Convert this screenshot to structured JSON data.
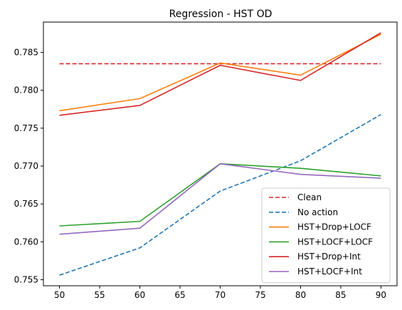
{
  "chart_data": {
    "type": "line",
    "title": "Regression - HST OD",
    "xlabel": "",
    "ylabel": "",
    "x": [
      50,
      60,
      70,
      80,
      90
    ],
    "xlim": [
      48,
      92
    ],
    "ylim": [
      0.7542,
      0.789
    ],
    "xticks": [
      50,
      55,
      60,
      65,
      70,
      75,
      80,
      85,
      90
    ],
    "yticks": [
      0.755,
      0.76,
      0.765,
      0.77,
      0.775,
      0.78,
      0.785
    ],
    "ytick_labels": [
      "0.755",
      "0.760",
      "0.765",
      "0.770",
      "0.775",
      "0.780",
      "0.785"
    ],
    "grid": false,
    "legend_position": "lower-right",
    "series": [
      {
        "name": "Clean",
        "color": "#d62728",
        "dash": "dashed",
        "values": [
          0.7835,
          0.7835,
          0.7835,
          0.7835,
          0.7835
        ]
      },
      {
        "name": "No action",
        "color": "#1f77b4",
        "dash": "dashed",
        "values": [
          0.7556,
          0.7592,
          0.7667,
          0.7707,
          0.7768
        ]
      },
      {
        "name": "HST+Drop+LOCF",
        "color": "#ff7f0e",
        "dash": "solid",
        "values": [
          0.7773,
          0.7789,
          0.7836,
          0.782,
          0.7874
        ]
      },
      {
        "name": "HST+LOCF+LOCF",
        "color": "#2ca02c",
        "dash": "solid",
        "values": [
          0.7621,
          0.7627,
          0.7703,
          0.7697,
          0.7687
        ]
      },
      {
        "name": "HST+Drop+Int",
        "color": "#d62728",
        "dash": "solid",
        "values": [
          0.7767,
          0.778,
          0.7833,
          0.7813,
          0.7876
        ]
      },
      {
        "name": "HST+LOCF+Int",
        "color": "#9467bd",
        "dash": "solid",
        "values": [
          0.761,
          0.7618,
          0.7703,
          0.7689,
          0.7684
        ]
      }
    ]
  }
}
